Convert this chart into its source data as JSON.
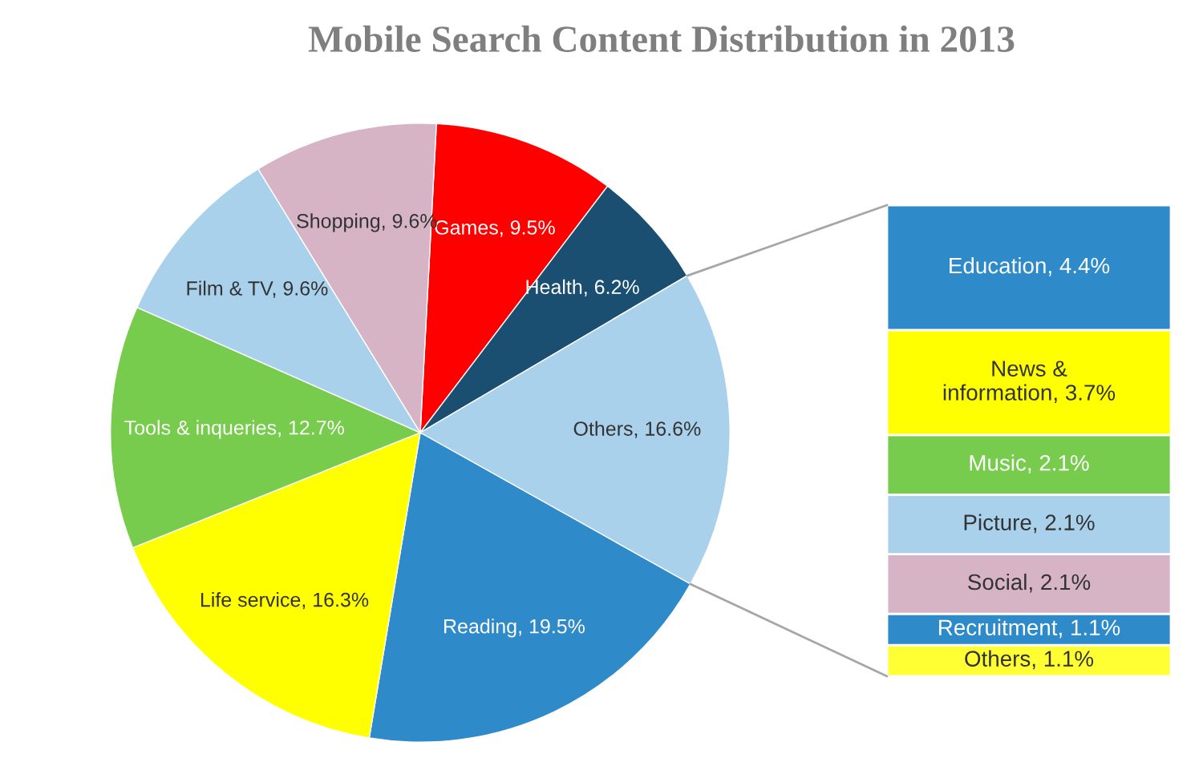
{
  "chart_data": [
    {
      "type": "pie",
      "title": "Mobile Search Content Distribution in 2013",
      "categories": [
        "Games",
        "Health",
        "Others",
        "Reading",
        "Life service",
        "Tools & inqueries",
        "Film & TV",
        "Shopping"
      ],
      "values": [
        9.5,
        6.2,
        16.6,
        19.5,
        16.3,
        12.7,
        9.6,
        9.6
      ],
      "value_labels": [
        "9.5%",
        "6.2%",
        "16.6%",
        "19.5%",
        "16.3%",
        "12.7%",
        "9.6%",
        "9.6%"
      ],
      "colors": [
        "#ff0000",
        "#1b4f72",
        "#a9d1ec",
        "#2e8ac8",
        "#ffff00",
        "#77cc4e",
        "#a9d1ec",
        "#d6b4c6"
      ],
      "legend": false
    },
    {
      "type": "bar",
      "stacked": true,
      "categories": [
        null
      ],
      "legend": false,
      "series": [
        {
          "color": "#ffff33",
          "values": [
            1.1
          ],
          "value_labels": [
            "Others, 1.1%"
          ]
        },
        {
          "color": "#2e8ac8",
          "values": [
            1.1
          ],
          "value_labels": [
            "Recruitment, 1.1%"
          ]
        },
        {
          "color": "#d6b4c6",
          "values": [
            2.1
          ],
          "value_labels": [
            "Social, 2.1%"
          ]
        },
        {
          "color": "#a9d1ec",
          "values": [
            2.1
          ],
          "value_labels": [
            "Picture, 2.1%"
          ]
        },
        {
          "color": "#77cc4e",
          "values": [
            2.1
          ],
          "value_labels": [
            "Music, 2.1%"
          ]
        },
        {
          "color": "#ffff00",
          "values": [
            3.7
          ],
          "value_labels": [
            "News &\ninformation, 3.7%"
          ]
        },
        {
          "color": "#2e8ac8",
          "values": [
            4.4
          ],
          "value_labels": [
            "Education, 4.4%"
          ]
        }
      ]
    }
  ]
}
